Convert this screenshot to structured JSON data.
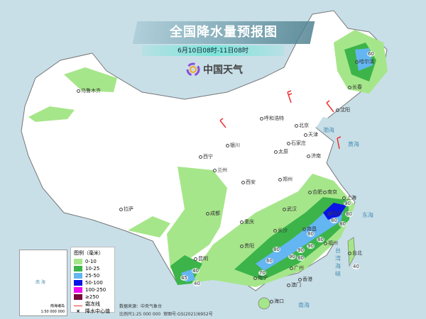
{
  "header": {
    "title": "全国降水量预报图",
    "subtitle": "6月10日08时-11日08时",
    "brand": "中国天气"
  },
  "legend": {
    "title": "图例（毫米）",
    "items": [
      {
        "label": "0-10",
        "color": "#a6e68a"
      },
      {
        "label": "10-25",
        "color": "#3cb44a"
      },
      {
        "label": "25-50",
        "color": "#63b6f2"
      },
      {
        "label": "50-100",
        "color": "#0a14e6"
      },
      {
        "label": "100-250",
        "color": "#f20af2"
      },
      {
        "label": "≥250",
        "color": "#780a3c"
      }
    ],
    "frost_line": "霜冻线",
    "rain_center": "降水中心值"
  },
  "footer": {
    "source": "数据来源：中央气象台",
    "scale": "比例尺1:25 000 000",
    "review": "审图号:GS(2021)6952号"
  },
  "inset": {
    "title": "南海诸岛",
    "scale": "1:50 000 000",
    "sea": "南 海"
  },
  "cities": [
    "乌鲁木齐",
    "哈尔滨",
    "长春",
    "沈阳",
    "呼和浩特",
    "北京",
    "天津",
    "石家庄",
    "太原",
    "济南",
    "银川",
    "西宁",
    "兰州",
    "西安",
    "郑州",
    "合肥",
    "南京",
    "上海",
    "杭州",
    "武汉",
    "南昌",
    "长沙",
    "福州",
    "台北",
    "拉萨",
    "成都",
    "重庆",
    "贵阳",
    "昆明",
    "南宁",
    "广州",
    "香港",
    "澳门",
    "海口"
  ],
  "seas": [
    "渤海",
    "黄海",
    "东海",
    "台湾海峡",
    "南海"
  ],
  "rain_centers": [
    "60",
    "90",
    "80",
    "80",
    "80",
    "80",
    "80",
    "90",
    "90",
    "80",
    "90",
    "80",
    "60",
    "70",
    "40",
    "40",
    "45",
    "40"
  ]
}
